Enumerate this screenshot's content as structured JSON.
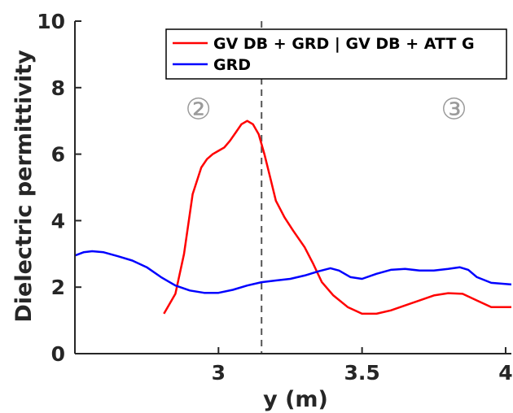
{
  "chart_data": {
    "type": "line",
    "xlabel": "y (m)",
    "ylabel": "Dielectric permittivity",
    "xlim": [
      2.5,
      4.02
    ],
    "ylim": [
      0,
      10
    ],
    "xticks": [
      "3",
      "3.5",
      "4"
    ],
    "yticks": [
      "0",
      "2",
      "4",
      "6",
      "8",
      "10"
    ],
    "xtick_values": [
      3,
      3.5,
      4
    ],
    "ytick_values": [
      0,
      2,
      4,
      6,
      8,
      10
    ],
    "grid": false,
    "legend_position": "top-right",
    "vline": {
      "x": 3.15,
      "style": "dashed",
      "color": "#555555"
    },
    "annotations": [
      {
        "text": "②",
        "x": 2.93,
        "y": 7.05
      },
      {
        "text": "③",
        "x": 3.82,
        "y": 7.05
      }
    ],
    "series": [
      {
        "name": "GV DB + GRD | GV DB + ATT G",
        "color": "#ff0000",
        "x": [
          2.81,
          2.85,
          2.88,
          2.91,
          2.94,
          2.96,
          2.98,
          3.0,
          3.02,
          3.04,
          3.06,
          3.08,
          3.1,
          3.12,
          3.14,
          3.16,
          3.18,
          3.2,
          3.23,
          3.26,
          3.3,
          3.33,
          3.36,
          3.4,
          3.45,
          3.5,
          3.55,
          3.6,
          3.65,
          3.7,
          3.75,
          3.8,
          3.85,
          3.9,
          3.95,
          4.02
        ],
        "y": [
          1.2,
          1.8,
          3.0,
          4.8,
          5.6,
          5.85,
          6.0,
          6.1,
          6.2,
          6.4,
          6.65,
          6.9,
          7.0,
          6.9,
          6.6,
          6.0,
          5.3,
          4.6,
          4.1,
          3.7,
          3.2,
          2.7,
          2.15,
          1.75,
          1.4,
          1.2,
          1.2,
          1.3,
          1.45,
          1.6,
          1.75,
          1.82,
          1.8,
          1.6,
          1.4,
          1.4
        ]
      },
      {
        "name": "GRD",
        "color": "#0000ff",
        "x": [
          2.5,
          2.53,
          2.56,
          2.6,
          2.65,
          2.7,
          2.75,
          2.8,
          2.85,
          2.9,
          2.95,
          3.0,
          3.05,
          3.1,
          3.15,
          3.2,
          3.25,
          3.3,
          3.35,
          3.39,
          3.42,
          3.46,
          3.5,
          3.55,
          3.6,
          3.65,
          3.7,
          3.75,
          3.8,
          3.84,
          3.87,
          3.9,
          3.95,
          4.02
        ],
        "y": [
          2.95,
          3.05,
          3.08,
          3.05,
          2.93,
          2.8,
          2.6,
          2.3,
          2.05,
          1.9,
          1.83,
          1.83,
          1.92,
          2.05,
          2.15,
          2.2,
          2.25,
          2.35,
          2.48,
          2.57,
          2.5,
          2.3,
          2.25,
          2.4,
          2.52,
          2.55,
          2.5,
          2.5,
          2.55,
          2.6,
          2.52,
          2.3,
          2.13,
          2.08
        ]
      }
    ]
  }
}
